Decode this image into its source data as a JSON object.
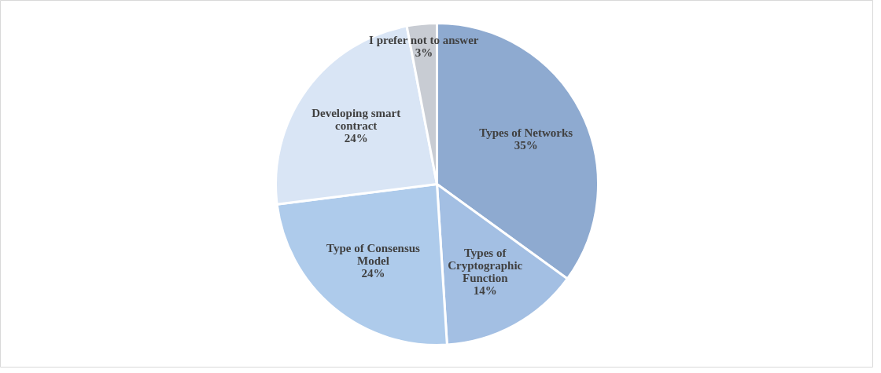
{
  "chart_data": {
    "type": "pie",
    "categories": [
      "Types of Networks",
      "Types of\nCryptographic\nFunction",
      "Type of Consensus\nModel",
      "Developing smart\ncontract",
      "I prefer not to answer"
    ],
    "values": [
      35,
      14,
      24,
      24,
      3
    ],
    "colors": [
      "#8eaad0",
      "#a3bfe3",
      "#aecbeb",
      "#d9e5f5",
      "#c8ccd3"
    ],
    "value_labels": [
      "35%",
      "14%",
      "24%",
      "24%",
      "3%"
    ]
  }
}
